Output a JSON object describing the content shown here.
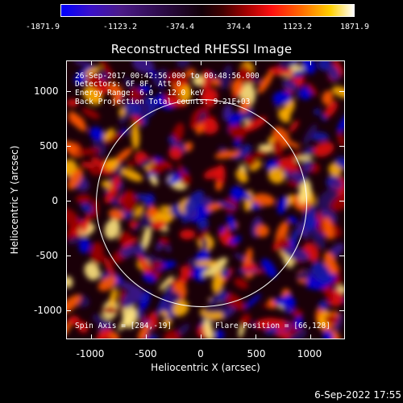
{
  "colorbar": {
    "ticks": [
      "-1871.9",
      "-1123.2",
      "-374.4",
      "374.4",
      "1123.2",
      "1871.9"
    ],
    "colors": [
      "#0000ff",
      "#4b1b8a",
      "#120008",
      "#a00000",
      "#ff1010",
      "#ff6a00",
      "#ffd000",
      "#ffffff"
    ]
  },
  "title": "Reconstructed RHESSI Image",
  "annotations": {
    "time_range": "26-Sep-2017 00:42:56.000 to 00:48:56.000",
    "detectors": "Detectors: 6F 8F, Att 0",
    "energy": "Energy Range: 6.0 - 12.0 keV",
    "method": "Back Projection    Total counts: 9.21E+03",
    "spin_axis": "Spin Axis = [284,-19]",
    "flare_position": "Flare Position = [66,128]"
  },
  "axes": {
    "xlabel": "Heliocentric X (arcsec)",
    "ylabel": "Heliocentric Y (arcsec)",
    "x_ticks": [
      "-1000",
      "-500",
      "0",
      "500",
      "1000"
    ],
    "y_ticks": [
      "1000",
      "500",
      "0",
      "-500",
      "-1000"
    ]
  },
  "footer": {
    "timestamp": "6-Sep-2022 17:55"
  }
}
